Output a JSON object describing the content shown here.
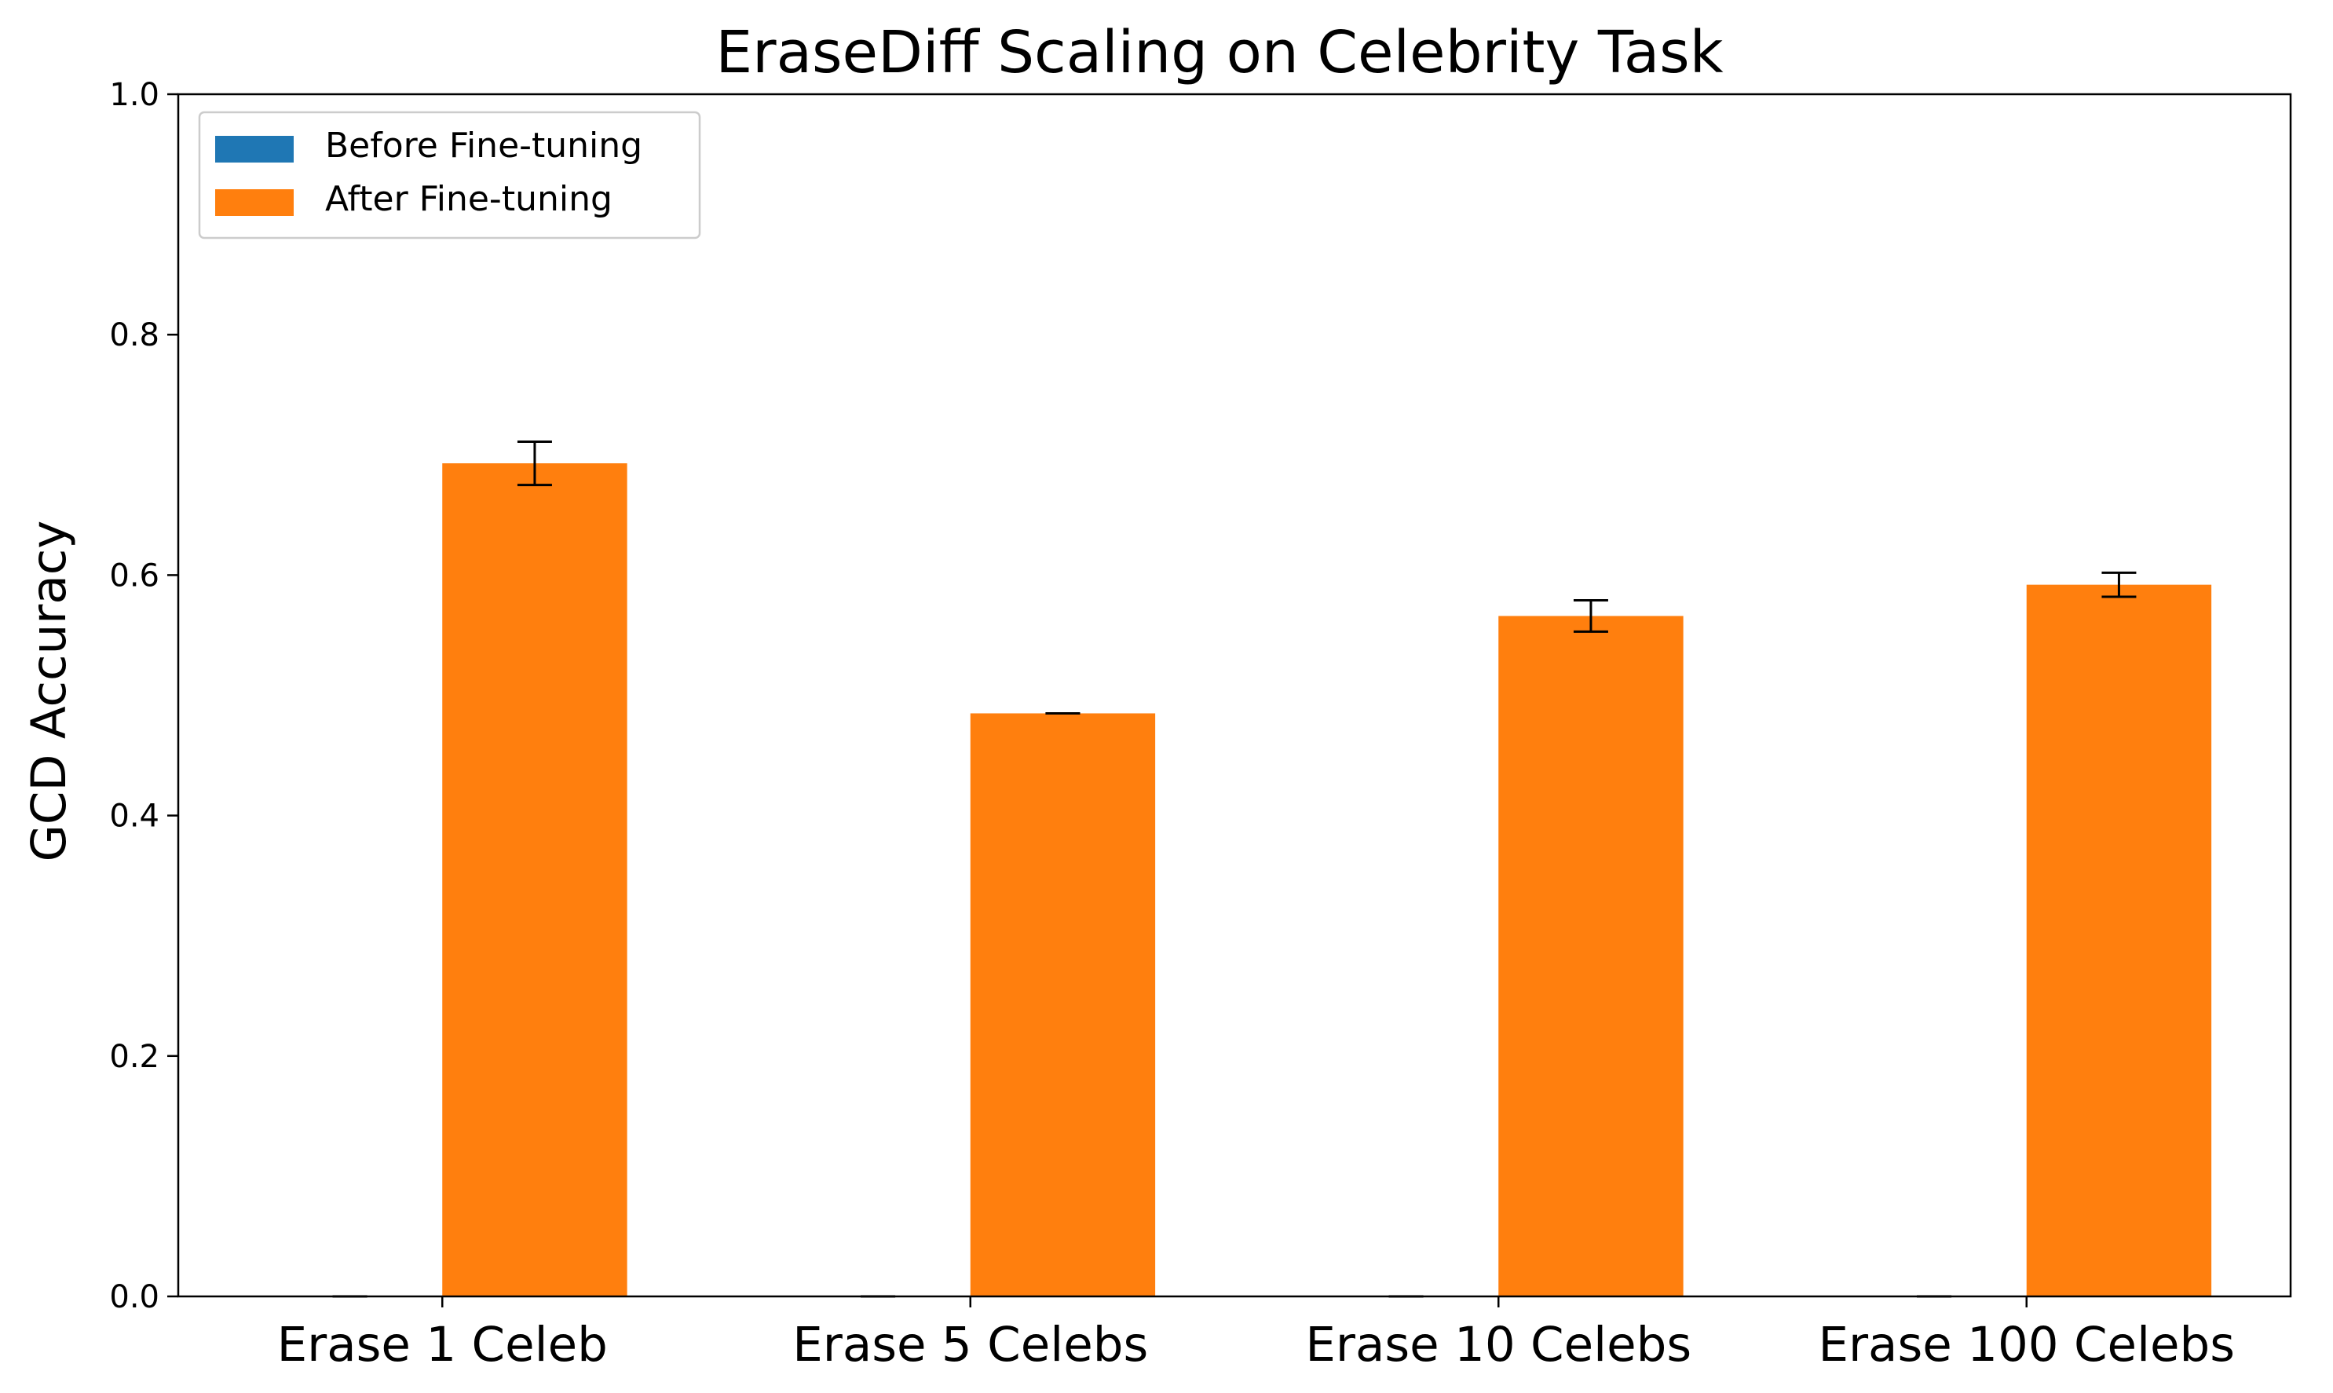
{
  "chart_data": {
    "type": "bar",
    "title": "EraseDiff Scaling on Celebrity Task",
    "xlabel": "",
    "ylabel": "GCD Accuracy",
    "categories": [
      "Erase 1 Celeb",
      "Erase 5 Celebs",
      "Erase 10 Celebs",
      "Erase 100 Celebs"
    ],
    "series": [
      {
        "name": "Before Fine-tuning",
        "color": "#1f77b4",
        "values": [
          0.0,
          0.0,
          0.0,
          0.0
        ],
        "errors": [
          0.0,
          0.0,
          0.0,
          0.0
        ]
      },
      {
        "name": "After Fine-tuning",
        "color": "#ff7f0e",
        "values": [
          0.693,
          0.485,
          0.566,
          0.592
        ],
        "errors": [
          0.018,
          0.0,
          0.013,
          0.01
        ]
      }
    ],
    "ylim": [
      0,
      1.0
    ],
    "yticks": [
      "0.0",
      "0.2",
      "0.4",
      "0.6",
      "0.8",
      "1.0"
    ],
    "ytick_values": [
      0.0,
      0.2,
      0.4,
      0.6,
      0.8,
      1.0
    ],
    "grid": false,
    "legend_position": "top-left"
  }
}
